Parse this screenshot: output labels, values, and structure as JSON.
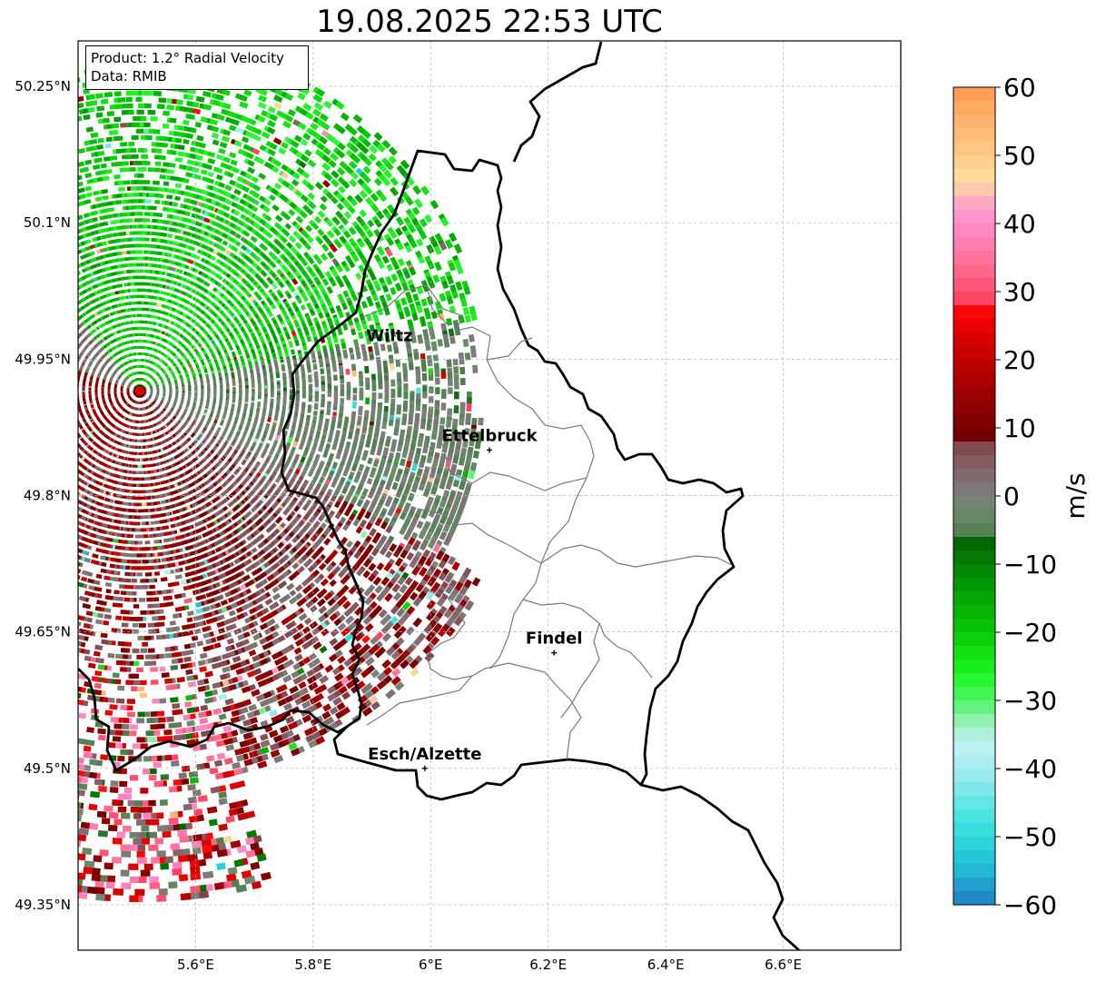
{
  "title": "19.08.2025 22:53 UTC",
  "info": {
    "product": "Product: 1.2° Radial Velocity",
    "data": "Data: RMIB"
  },
  "map": {
    "lon_range": [
      5.4,
      6.8
    ],
    "lat_range": [
      49.3,
      50.3
    ],
    "lon_ticks": [
      {
        "value": 5.6,
        "label": "5.6°E"
      },
      {
        "value": 5.8,
        "label": "5.8°E"
      },
      {
        "value": 6.0,
        "label": "6°E"
      },
      {
        "value": 6.2,
        "label": "6.2°E"
      },
      {
        "value": 6.4,
        "label": "6.4°E"
      },
      {
        "value": 6.6,
        "label": "6.6°E"
      }
    ],
    "lat_ticks": [
      {
        "value": 50.25,
        "label": "50.25°N"
      },
      {
        "value": 50.1,
        "label": "50.1°N"
      },
      {
        "value": 49.95,
        "label": "49.95°N"
      },
      {
        "value": 49.8,
        "label": "49.8°N"
      },
      {
        "value": 49.65,
        "label": "49.65°N"
      },
      {
        "value": 49.5,
        "label": "49.5°N"
      },
      {
        "value": 49.35,
        "label": "49.35°N"
      }
    ],
    "grid": true,
    "radar_site": {
      "lon": 5.505,
      "lat": 49.915,
      "color": "#e00000"
    },
    "cities": [
      {
        "name": "Wiltz",
        "lon": 5.93,
        "lat": 49.97,
        "marker": false
      },
      {
        "name": "Ettelbruck",
        "lon": 6.1,
        "lat": 49.85,
        "marker": true
      },
      {
        "name": "Findel",
        "lon": 6.21,
        "lat": 49.627,
        "marker": true
      },
      {
        "name": "Esch/Alzette",
        "lon": 5.99,
        "lat": 49.5,
        "marker": true
      }
    ]
  },
  "colorbar": {
    "min": -60,
    "max": 60,
    "unit": "m/s",
    "ticks": [
      {
        "value": 60,
        "label": "60"
      },
      {
        "value": 50,
        "label": "50"
      },
      {
        "value": 40,
        "label": "40"
      },
      {
        "value": 30,
        "label": "30"
      },
      {
        "value": 20,
        "label": "20"
      },
      {
        "value": 10,
        "label": "10"
      },
      {
        "value": 0,
        "label": "0"
      },
      {
        "value": -10,
        "label": "−10"
      },
      {
        "value": -20,
        "label": "−20"
      },
      {
        "value": -30,
        "label": "−30"
      },
      {
        "value": -40,
        "label": "−40"
      },
      {
        "value": -50,
        "label": "−50"
      },
      {
        "value": -60,
        "label": "−60"
      }
    ],
    "stops": [
      {
        "value": -60,
        "color": "#1f7fc4"
      },
      {
        "value": -55,
        "color": "#23b6d6"
      },
      {
        "value": -50,
        "color": "#2edcdc"
      },
      {
        "value": -45,
        "color": "#62e6e6"
      },
      {
        "value": -40,
        "color": "#a6eef0"
      },
      {
        "value": -36,
        "color": "#c2f2f2"
      },
      {
        "value": -33,
        "color": "#90f0b0"
      },
      {
        "value": -30,
        "color": "#4cf56a"
      },
      {
        "value": -26,
        "color": "#1ef51e"
      },
      {
        "value": -20,
        "color": "#08c808"
      },
      {
        "value": -14,
        "color": "#03a003"
      },
      {
        "value": -7,
        "color": "#036803"
      },
      {
        "value": -6,
        "color": "#4f7d4f"
      },
      {
        "value": -2,
        "color": "#6c8a6c"
      },
      {
        "value": 0,
        "color": "#7d7d7d"
      },
      {
        "value": 4,
        "color": "#85636a"
      },
      {
        "value": 8,
        "color": "#804248"
      },
      {
        "value": 8.5,
        "color": "#6e0000"
      },
      {
        "value": 14,
        "color": "#960000"
      },
      {
        "value": 20,
        "color": "#c00000"
      },
      {
        "value": 25,
        "color": "#ea0000"
      },
      {
        "value": 28,
        "color": "#ff0a0a"
      },
      {
        "value": 28.5,
        "color": "#ff4060"
      },
      {
        "value": 34,
        "color": "#ff6f94"
      },
      {
        "value": 40,
        "color": "#ff8ccc"
      },
      {
        "value": 44,
        "color": "#ffb0c0"
      },
      {
        "value": 46,
        "color": "#ffe09e"
      },
      {
        "value": 52,
        "color": "#ffc27e"
      },
      {
        "value": 60,
        "color": "#ff9a50"
      }
    ]
  },
  "colors": {
    "border": "#000000",
    "canton_line": "#7a7a7a",
    "grid": "#b0b0b0"
  }
}
